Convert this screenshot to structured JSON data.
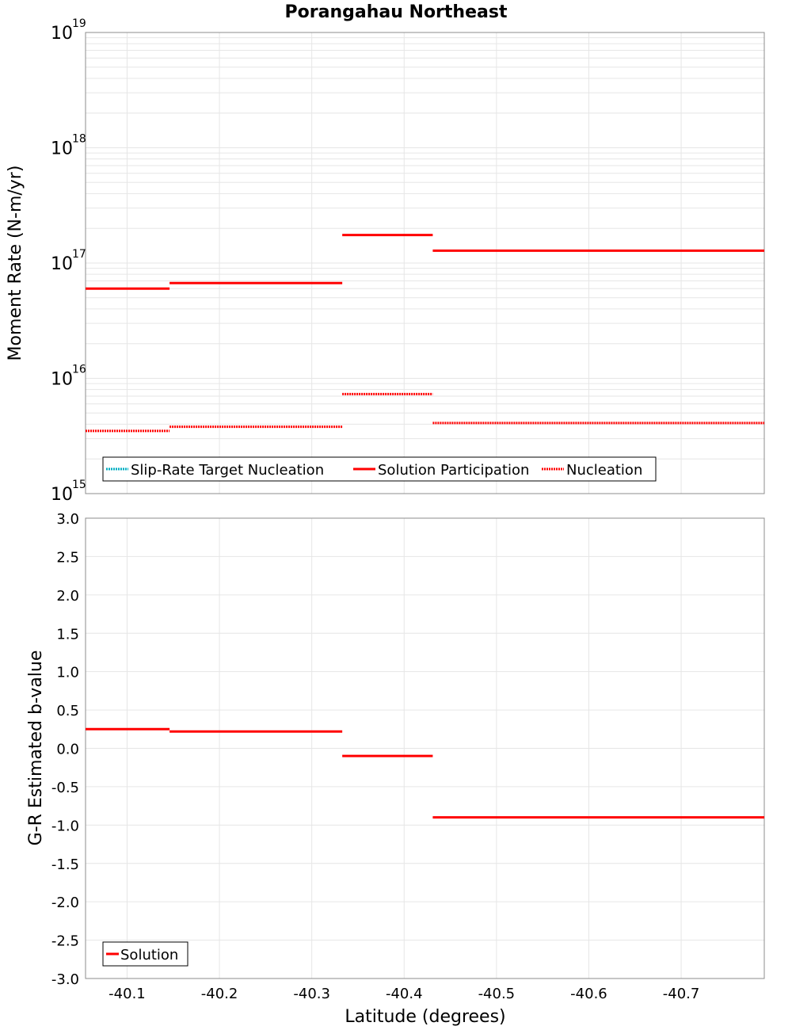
{
  "chart_data": [
    {
      "type": "line",
      "title": "Porangahau Northeast",
      "xlabel": "",
      "ylabel": "Moment Rate (N-m/yr)",
      "yscale": "log",
      "ylim": [
        1000000000000000.0,
        1e+19
      ],
      "xlim": [
        -40.055,
        -40.79
      ],
      "y_ticks": [
        {
          "base": "10",
          "exp": "15",
          "value": 1000000000000000.0
        },
        {
          "base": "10",
          "exp": "16",
          "value": 1e+16
        },
        {
          "base": "10",
          "exp": "17",
          "value": 1e+17
        },
        {
          "base": "10",
          "exp": "18",
          "value": 1e+18
        },
        {
          "base": "10",
          "exp": "19",
          "value": 1e+19
        }
      ],
      "series": [
        {
          "name": "Slip-Rate Target Nucleation",
          "color": "#00aec2",
          "style": "dotted",
          "segments": []
        },
        {
          "name": "Solution Participation",
          "color": "#ff0000",
          "style": "solid",
          "segments": [
            {
              "x0": -40.055,
              "x1": -40.146,
              "y": 6e+16
            },
            {
              "x0": -40.146,
              "x1": -40.333,
              "y": 6.7e+16
            },
            {
              "x0": -40.333,
              "x1": -40.431,
              "y": 1.75e+17
            },
            {
              "x0": -40.431,
              "x1": -40.79,
              "y": 1.28e+17
            }
          ]
        },
        {
          "name": "Nucleation",
          "color": "#ff0000",
          "style": "dotted",
          "segments": [
            {
              "x0": -40.055,
              "x1": -40.146,
              "y": 3500000000000000.0
            },
            {
              "x0": -40.146,
              "x1": -40.333,
              "y": 3800000000000000.0
            },
            {
              "x0": -40.333,
              "x1": -40.431,
              "y": 7300000000000000.0
            },
            {
              "x0": -40.431,
              "x1": -40.79,
              "y": 4100000000000000.0
            }
          ]
        }
      ]
    },
    {
      "type": "line",
      "title": "",
      "xlabel": "Latitude (degrees)",
      "ylabel": "G-R Estimated b-value",
      "ylim": [
        -3.0,
        3.0
      ],
      "xlim": [
        -40.055,
        -40.79
      ],
      "x_ticks": [
        {
          "label": "-40.1",
          "value": -40.1
        },
        {
          "label": "-40.2",
          "value": -40.2
        },
        {
          "label": "-40.3",
          "value": -40.3
        },
        {
          "label": "-40.4",
          "value": -40.4
        },
        {
          "label": "-40.5",
          "value": -40.5
        },
        {
          "label": "-40.6",
          "value": -40.6
        },
        {
          "label": "-40.7",
          "value": -40.7
        }
      ],
      "y_ticks": [
        {
          "label": "3.0",
          "value": 3.0
        },
        {
          "label": "2.5",
          "value": 2.5
        },
        {
          "label": "2.0",
          "value": 2.0
        },
        {
          "label": "1.5",
          "value": 1.5
        },
        {
          "label": "1.0",
          "value": 1.0
        },
        {
          "label": "0.5",
          "value": 0.5
        },
        {
          "label": "0.0",
          "value": 0.0
        },
        {
          "label": "-0.5",
          "value": -0.5
        },
        {
          "label": "-1.0",
          "value": -1.0
        },
        {
          "label": "-1.5",
          "value": -1.5
        },
        {
          "label": "-2.0",
          "value": -2.0
        },
        {
          "label": "-2.5",
          "value": -2.5
        },
        {
          "label": "-3.0",
          "value": -3.0
        }
      ],
      "series": [
        {
          "name": "Solution",
          "color": "#ff0000",
          "style": "solid",
          "segments": [
            {
              "x0": -40.055,
              "x1": -40.146,
              "y": 0.25
            },
            {
              "x0": -40.146,
              "x1": -40.333,
              "y": 0.22
            },
            {
              "x0": -40.333,
              "x1": -40.431,
              "y": -0.1
            },
            {
              "x0": -40.431,
              "x1": -40.79,
              "y": -0.9
            }
          ]
        }
      ]
    }
  ]
}
